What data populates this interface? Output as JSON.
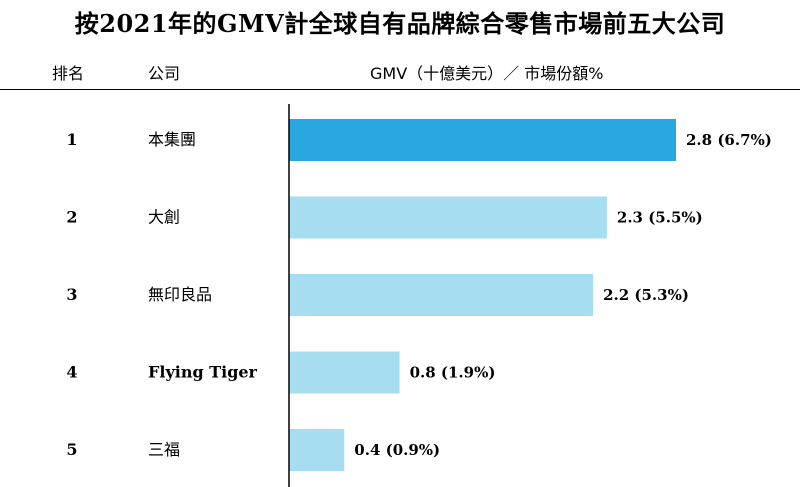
{
  "header": {
    "title": "按2021年的GMV計全球自有品牌綜合零售市場前五大公司",
    "col_rank": "排名",
    "col_company": "公司",
    "col_metric": "GMV（十億美元）／ 市場份額%"
  },
  "colors": {
    "highlight": "#29A8E0",
    "bar": "#A6DDF0",
    "axis": "#000000"
  },
  "chart_data": {
    "type": "bar",
    "orientation": "horizontal",
    "title": "按2021年的GMV計全球自有品牌綜合零售市場前五大公司",
    "xlabel": "GMV（十億美元）／ 市場份額%",
    "xlim": [
      0,
      2.8
    ],
    "grid": false,
    "ranks": [
      "1",
      "2",
      "3",
      "4",
      "5"
    ],
    "categories": [
      "本集團",
      "大創",
      "無印良品",
      "Flying Tiger",
      "三福"
    ],
    "values": [
      2.8,
      2.3,
      2.2,
      0.8,
      0.4
    ],
    "shares": [
      6.7,
      5.5,
      5.3,
      1.9,
      0.9
    ],
    "labels": [
      "2.8 (6.7%)",
      "2.3 (5.5%)",
      "2.2 (5.3%)",
      "0.8 (1.9%)",
      "0.4 (0.9%)"
    ],
    "highlighted": [
      true,
      false,
      false,
      false,
      false
    ]
  }
}
